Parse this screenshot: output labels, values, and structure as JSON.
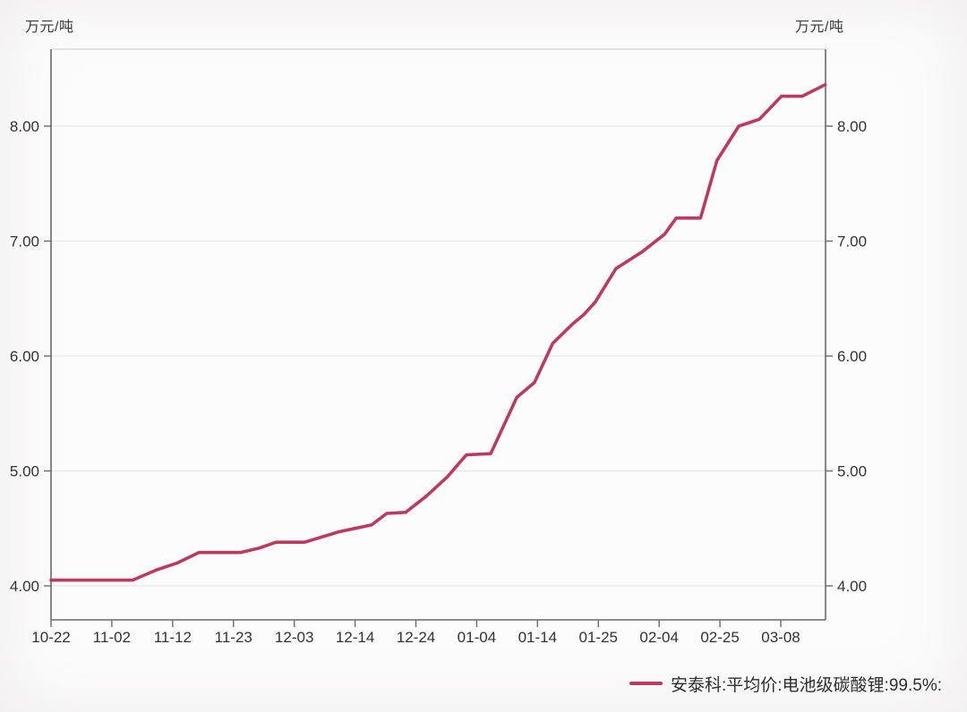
{
  "chart_data": {
    "type": "line",
    "title": "",
    "unit_left": "万元/吨",
    "unit_right": "万元/吨",
    "x_tick_labels": [
      "10-22",
      "11-02",
      "11-12",
      "11-23",
      "12-03",
      "12-14",
      "12-24",
      "01-04",
      "01-14",
      "01-25",
      "02-04",
      "02-25",
      "03-08"
    ],
    "y_tick_values": [
      4,
      5,
      6,
      7,
      8
    ],
    "y_tick_labels": [
      "4.00",
      "5.00",
      "6.00",
      "7.00",
      "8.00"
    ],
    "ylim": [
      3.7,
      8.67
    ],
    "x_index_max": 12.73,
    "grid": "horizontal",
    "legend_position": "bottom-right",
    "axis_color": "#6a6a6a",
    "top_border_color": "#dcdada",
    "grid_color": "#e8e6e6",
    "text_color": "#333333",
    "series": [
      {
        "name": "安泰科:平均价:电池级碳酸锂:99.5%:",
        "color": "#bc3a60",
        "points": [
          [
            0.0,
            4.05
          ],
          [
            1.34,
            4.05
          ],
          [
            1.74,
            4.14
          ],
          [
            2.08,
            4.2
          ],
          [
            2.43,
            4.29
          ],
          [
            3.11,
            4.29
          ],
          [
            3.43,
            4.33
          ],
          [
            3.7,
            4.38
          ],
          [
            4.17,
            4.38
          ],
          [
            4.73,
            4.47
          ],
          [
            5.27,
            4.53
          ],
          [
            5.52,
            4.63
          ],
          [
            5.83,
            4.64
          ],
          [
            6.17,
            4.78
          ],
          [
            6.52,
            4.95
          ],
          [
            6.83,
            5.14
          ],
          [
            7.23,
            5.15
          ],
          [
            7.66,
            5.64
          ],
          [
            7.95,
            5.77
          ],
          [
            8.25,
            6.11
          ],
          [
            8.58,
            6.28
          ],
          [
            8.76,
            6.36
          ],
          [
            8.95,
            6.47
          ],
          [
            9.29,
            6.76
          ],
          [
            9.73,
            6.91
          ],
          [
            10.09,
            7.06
          ],
          [
            10.28,
            7.2
          ],
          [
            10.68,
            7.2
          ],
          [
            10.95,
            7.7
          ],
          [
            11.31,
            8.0
          ],
          [
            11.65,
            8.06
          ],
          [
            12.01,
            8.26
          ],
          [
            12.35,
            8.26
          ],
          [
            12.73,
            8.36
          ]
        ]
      }
    ]
  }
}
